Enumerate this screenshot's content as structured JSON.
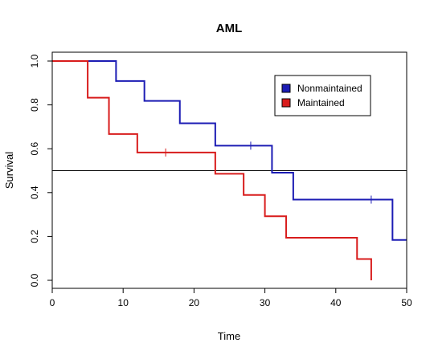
{
  "chart_data": {
    "type": "line",
    "title": "AML",
    "xlabel": "Time",
    "ylabel": "Survival",
    "xlim": [
      0,
      50
    ],
    "ylim": [
      0,
      1
    ],
    "xticks": [
      0,
      10,
      20,
      30,
      40,
      50
    ],
    "yticks": [
      0.0,
      0.2,
      0.4,
      0.6,
      0.8,
      1.0
    ],
    "xtick_labels": [
      "0",
      "10",
      "20",
      "30",
      "40",
      "50"
    ],
    "ytick_labels": [
      "0.0",
      "0.2",
      "0.4",
      "0.6",
      "0.8",
      "1.0"
    ],
    "grid": false,
    "legend_position": "top-right",
    "reference_line": {
      "y": 0.5,
      "color": "#000000"
    },
    "series": [
      {
        "name": "Nonmaintained",
        "color": "#1c1cb4",
        "steps": [
          [
            0,
            1.0
          ],
          [
            9,
            0.909
          ],
          [
            13,
            0.818
          ],
          [
            18,
            0.716
          ],
          [
            23,
            0.614
          ],
          [
            31,
            0.491
          ],
          [
            34,
            0.368
          ],
          [
            48,
            0.184
          ],
          [
            50,
            0.184
          ]
        ],
        "censored": [
          [
            28,
            0.614
          ],
          [
            45,
            0.368
          ]
        ]
      },
      {
        "name": "Maintained",
        "color": "#d81c1c",
        "steps": [
          [
            0,
            1.0
          ],
          [
            5,
            0.833
          ],
          [
            8,
            0.667
          ],
          [
            12,
            0.583
          ],
          [
            23,
            0.486
          ],
          [
            27,
            0.389
          ],
          [
            30,
            0.292
          ],
          [
            33,
            0.194
          ],
          [
            43,
            0.097
          ],
          [
            45,
            0.0
          ]
        ],
        "censored": [
          [
            16,
            0.583
          ]
        ]
      }
    ]
  }
}
